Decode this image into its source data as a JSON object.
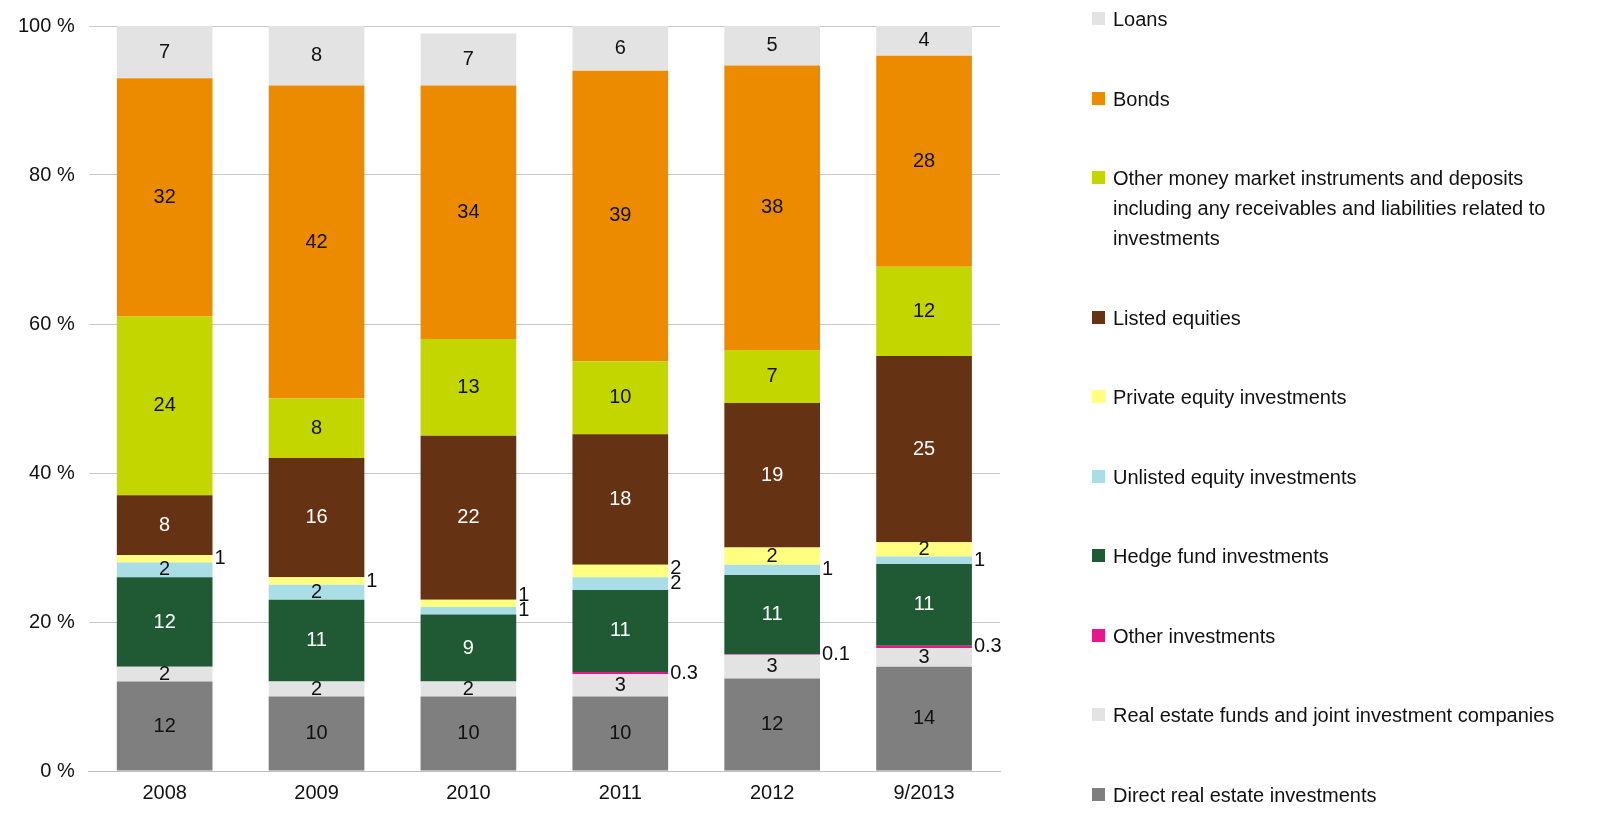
{
  "chart_data": {
    "type": "bar",
    "stacked": true,
    "grid": "y",
    "legend": "right",
    "categories": [
      "2008",
      "2009",
      "2010",
      "2011",
      "2012",
      "9/2013"
    ],
    "ylim": [
      0,
      100
    ],
    "yticks": [
      {
        "value": 0,
        "label": "0 %"
      },
      {
        "value": 20,
        "label": "20 %"
      },
      {
        "value": 40,
        "label": "40 %"
      },
      {
        "value": 60,
        "label": "60 %"
      },
      {
        "value": 80,
        "label": "80 %"
      },
      {
        "value": 100,
        "label": "100 %"
      }
    ],
    "series": [
      {
        "name": "Direct real estate investments",
        "color": "#7f7f7f",
        "values": [
          12,
          10,
          10,
          10,
          12.4,
          14
        ],
        "value_labels": [
          "12",
          "10",
          "10",
          "10",
          "12",
          "14"
        ]
      },
      {
        "name": "Real estate funds and joint investment companies",
        "color": "#e3e3e3",
        "values": [
          2,
          2,
          2,
          3,
          3.2,
          2.5
        ],
        "value_labels": [
          "2",
          "2",
          "2",
          "3",
          "3",
          "3"
        ]
      },
      {
        "name": "Other investments",
        "color": "#e6168c",
        "values": [
          0,
          0,
          0,
          0.3,
          0.1,
          0.3
        ],
        "value_labels": [
          null,
          null,
          null,
          "0.3",
          "0.1",
          "0.3"
        ]
      },
      {
        "name": "Hedge fund investments",
        "color": "#1f5a35",
        "values": [
          12,
          11,
          9,
          11,
          10.6,
          11
        ],
        "value_labels": [
          "12",
          "11",
          "9",
          "11",
          "11",
          "11"
        ]
      },
      {
        "name": "Unlisted equity investments",
        "color": "#a9dee6",
        "values": [
          2,
          2,
          1,
          1.7,
          1.4,
          1
        ],
        "value_labels": [
          "2",
          "2",
          "1",
          "2",
          "1",
          "1"
        ]
      },
      {
        "name": "Private equity investments",
        "color": "#ffff80",
        "values": [
          1,
          1,
          1,
          1.7,
          2.3,
          1.9
        ],
        "value_labels": [
          "1",
          "1",
          "1",
          "2",
          "2",
          "2"
        ]
      },
      {
        "name": "Listed equities",
        "color": "#653314",
        "values": [
          8,
          16,
          22,
          17.5,
          19.4,
          25
        ],
        "value_labels": [
          "8",
          "16",
          "22",
          "18",
          "19",
          "25"
        ]
      },
      {
        "name": "Other money market instruments and deposits including any receivables and liabilities related to investments",
        "color": "#c3d600",
        "values": [
          24,
          8,
          13,
          9.8,
          7.1,
          12
        ],
        "value_labels": [
          "24",
          "8",
          "13",
          "10",
          "7",
          "12"
        ]
      },
      {
        "name": "Bonds",
        "color": "#ec8b00",
        "values": [
          32,
          42,
          34,
          39,
          38.2,
          28.3
        ],
        "value_labels": [
          "32",
          "42",
          "34",
          "39",
          "38",
          "28"
        ]
      },
      {
        "name": "Loans",
        "color": "#e3e3e3",
        "values": [
          7,
          8,
          7,
          6,
          5.3,
          4
        ],
        "value_labels": [
          "7",
          "8",
          "7",
          "6",
          "5",
          "4"
        ]
      }
    ]
  }
}
